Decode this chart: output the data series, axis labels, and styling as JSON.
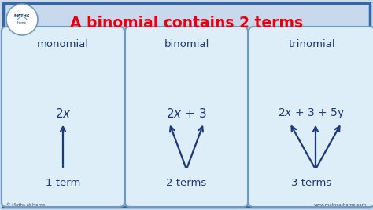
{
  "title": "A binomial contains 2 terms",
  "title_color": "#e8000d",
  "background_color": "#c8d8ed",
  "box_color": "#deeef8",
  "box_border_color": "#7099bb",
  "text_color": "#1a3a7a",
  "arrow_color": "#1a3a7a",
  "outer_border_color": "#3366aa",
  "boxes": [
    {
      "label": "monomial",
      "expression": "2$\\it{x}$",
      "term_count": "1 term",
      "arrow_type": "single_up"
    },
    {
      "label": "binomial",
      "expression": "2$\\it{x}$ + 3",
      "term_count": "2 terms",
      "arrow_type": "v_up"
    },
    {
      "label": "trinomial",
      "expression": "2$\\it{x}$ + 3 + 5y",
      "term_count": "3 terms",
      "arrow_type": "three_up"
    }
  ],
  "watermark_left": "© Maths at Home",
  "watermark_right": "www.mathsathome.com"
}
